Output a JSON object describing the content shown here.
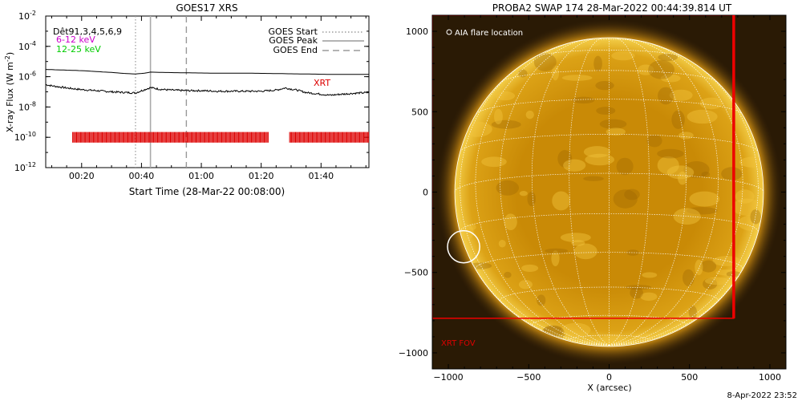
{
  "left_panel": {
    "title": "GOES17 XRS",
    "ylabel": "X-ray Flux (W m",
    "ylabel_sup": "-2",
    "ylabel_close": ")",
    "xlabel": "Start Time (28-Mar-22 00:08:00)",
    "channels": [
      {
        "label": "Dêt91,3,4,5,6,9",
        "color": "#000000"
      },
      {
        "label": "6-12 keV",
        "color": "#cc00cc"
      },
      {
        "label": "12-25 keV",
        "color": "#00cc00"
      }
    ],
    "legend": [
      {
        "label": "GOES Start",
        "style": "dotted"
      },
      {
        "label": "GOES Peak",
        "style": "solid"
      },
      {
        "label": "GOES End",
        "style": "dashed"
      }
    ],
    "xrt_label": "XRT",
    "xrt_color": "#dd0000"
  },
  "right_panel": {
    "title": "PROBA2 SWAP 174 28-Mar-2022 00:44:39.814 UT",
    "xlabel": "X (arcsec)",
    "aia_label": "AIA flare location",
    "xrt_fov_label": "XRT FOV",
    "xrt_color": "#ee0000"
  },
  "footer": {
    "date": "8-Apr-2022 23:52"
  },
  "chart_data": [
    {
      "type": "line",
      "title": "GOES17 XRS",
      "xlabel": "Start Time (28-Mar-22 00:08:00)",
      "ylabel": "X-ray Flux (W m-2)",
      "yscale": "log",
      "xlim_minutes": [
        8,
        116
      ],
      "ylim": [
        1e-12,
        0.01
      ],
      "x_ticks": [
        {
          "t": 20,
          "label": "00:20"
        },
        {
          "t": 40,
          "label": "00:40"
        },
        {
          "t": 60,
          "label": "01:00"
        },
        {
          "t": 80,
          "label": "01:20"
        },
        {
          "t": 100,
          "label": "01:40"
        }
      ],
      "y_ticks": [
        {
          "exp": -2,
          "label": "10",
          "sup": "-2"
        },
        {
          "exp": -4,
          "label": "10",
          "sup": "-4"
        },
        {
          "exp": -6,
          "label": "10",
          "sup": "-6"
        },
        {
          "exp": -8,
          "label": "10",
          "sup": "-8"
        },
        {
          "exp": -10,
          "label": "10",
          "sup": "-10"
        },
        {
          "exp": -12,
          "label": "10",
          "sup": "-12"
        }
      ],
      "markers_minutes": {
        "start": 38,
        "peak": 43,
        "end": 55
      },
      "series": [
        {
          "name": "GOES long channel",
          "x": [
            8,
            20,
            30,
            35,
            38,
            41,
            43,
            47,
            55,
            65,
            75,
            85,
            95,
            105,
            116
          ],
          "y": [
            3e-06,
            2.5e-06,
            1.9e-06,
            1.6e-06,
            1.5e-06,
            1.7e-06,
            2e-06,
            1.9e-06,
            1.8e-06,
            1.7e-06,
            1.7e-06,
            1.6e-06,
            1.5e-06,
            1.4e-06,
            1.4e-06
          ]
        },
        {
          "name": "GOES short channel",
          "x": [
            8,
            10,
            15,
            20,
            25,
            30,
            35,
            38,
            41,
            43,
            46,
            50,
            55,
            60,
            65,
            70,
            75,
            80,
            85,
            88,
            92,
            95,
            100,
            103,
            107,
            111,
            116
          ],
          "y": [
            3e-07,
            2.5e-07,
            1.8e-07,
            1.4e-07,
            1.2e-07,
            1e-07,
            9e-08,
            8.5e-08,
            1.4e-07,
            1.9e-07,
            1.5e-07,
            1.3e-07,
            1.2e-07,
            1.2e-07,
            1.1e-07,
            1.1e-07,
            1.1e-07,
            1.1e-07,
            1.3e-07,
            1.8e-07,
            1.3e-07,
            9e-08,
            7e-08,
            6e-08,
            7e-08,
            8e-08,
            9e-08
          ]
        }
      ],
      "xrt_coverage_minutes": [
        [
          17,
          82.5
        ],
        [
          89.5,
          116
        ]
      ]
    },
    {
      "type": "image",
      "title": "PROBA2 SWAP 174 28-Mar-2022 00:44:39.814 UT",
      "xlabel": "X (arcsec)",
      "xlim": [
        -1100,
        1100
      ],
      "ylim": [
        -1100,
        1100
      ],
      "x_ticks": [
        -1000,
        -500,
        0,
        500,
        1000
      ],
      "y_ticks": [
        -1000,
        -500,
        0,
        500,
        1000
      ],
      "sun_radius_arcsec": 960,
      "aia_flare_location": {
        "x": -905,
        "y": -340,
        "r": 100
      },
      "xrt_fov": {
        "x0": -1100,
        "x1": 775,
        "y0": -785,
        "y1": 1100
      }
    }
  ]
}
